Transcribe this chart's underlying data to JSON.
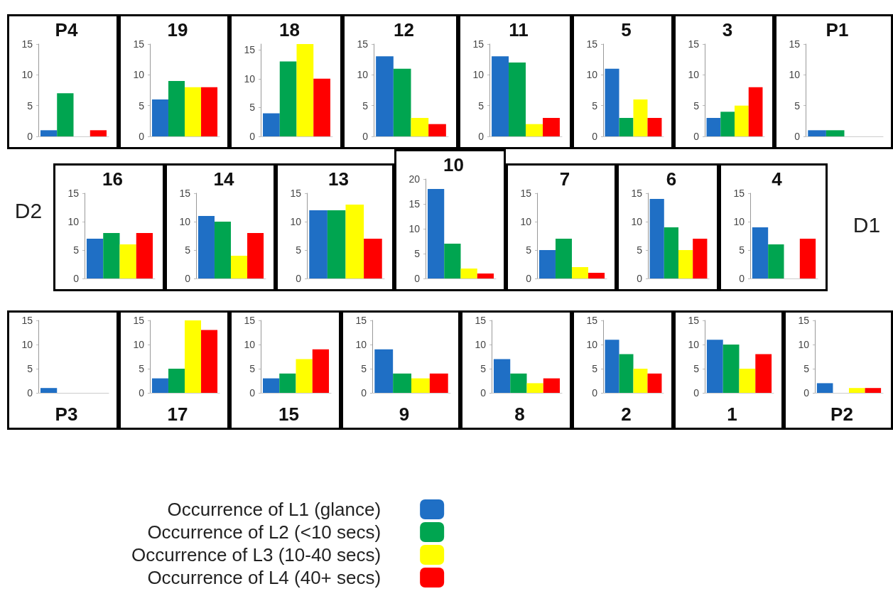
{
  "chart_data": [
    {
      "type": "bar",
      "title": "P4",
      "categories": [
        null
      ],
      "series": [
        {
          "color": "#1f6fc5",
          "values": [
            1
          ]
        },
        {
          "color": "#00a550",
          "values": [
            7
          ]
        },
        {
          "color": "#ffff00",
          "values": [
            0
          ]
        },
        {
          "color": "#ff0000",
          "values": [
            1
          ]
        }
      ],
      "ylim": [
        0,
        15
      ],
      "yticks": [
        0,
        5,
        10,
        15
      ]
    },
    {
      "type": "bar",
      "title": "19",
      "categories": [
        null
      ],
      "series": [
        {
          "color": "#1f6fc5",
          "values": [
            6
          ]
        },
        {
          "color": "#00a550",
          "values": [
            9
          ]
        },
        {
          "color": "#ffff00",
          "values": [
            8
          ]
        },
        {
          "color": "#ff0000",
          "values": [
            8
          ]
        }
      ],
      "ylim": [
        0,
        15
      ],
      "yticks": [
        0,
        5,
        10,
        15
      ]
    },
    {
      "type": "bar",
      "title": "18",
      "categories": [
        null
      ],
      "series": [
        {
          "color": "#1f6fc5",
          "values": [
            4
          ]
        },
        {
          "color": "#00a550",
          "values": [
            13
          ]
        },
        {
          "color": "#ffff00",
          "values": [
            16
          ]
        },
        {
          "color": "#ff0000",
          "values": [
            10
          ]
        }
      ],
      "ylim": [
        0,
        16
      ],
      "yticks": [
        0,
        5,
        10,
        15
      ]
    },
    {
      "type": "bar",
      "title": "12",
      "categories": [
        null
      ],
      "series": [
        {
          "color": "#1f6fc5",
          "values": [
            13
          ]
        },
        {
          "color": "#00a550",
          "values": [
            11
          ]
        },
        {
          "color": "#ffff00",
          "values": [
            3
          ]
        },
        {
          "color": "#ff0000",
          "values": [
            2
          ]
        }
      ],
      "ylim": [
        0,
        15
      ],
      "yticks": [
        0,
        5,
        10,
        15
      ]
    },
    {
      "type": "bar",
      "title": "11",
      "categories": [
        null
      ],
      "series": [
        {
          "color": "#1f6fc5",
          "values": [
            13
          ]
        },
        {
          "color": "#00a550",
          "values": [
            12
          ]
        },
        {
          "color": "#ffff00",
          "values": [
            2
          ]
        },
        {
          "color": "#ff0000",
          "values": [
            3
          ]
        }
      ],
      "ylim": [
        0,
        15
      ],
      "yticks": [
        0,
        5,
        10,
        15
      ]
    },
    {
      "type": "bar",
      "title": "5",
      "categories": [
        null
      ],
      "series": [
        {
          "color": "#1f6fc5",
          "values": [
            11
          ]
        },
        {
          "color": "#00a550",
          "values": [
            3
          ]
        },
        {
          "color": "#ffff00",
          "values": [
            6
          ]
        },
        {
          "color": "#ff0000",
          "values": [
            3
          ]
        }
      ],
      "ylim": [
        0,
        15
      ],
      "yticks": [
        0,
        5,
        10,
        15
      ]
    },
    {
      "type": "bar",
      "title": "3",
      "categories": [
        null
      ],
      "series": [
        {
          "color": "#1f6fc5",
          "values": [
            3
          ]
        },
        {
          "color": "#00a550",
          "values": [
            4
          ]
        },
        {
          "color": "#ffff00",
          "values": [
            5
          ]
        },
        {
          "color": "#ff0000",
          "values": [
            8
          ]
        }
      ],
      "ylim": [
        0,
        15
      ],
      "yticks": [
        0,
        5,
        10,
        15
      ]
    },
    {
      "type": "bar",
      "title": "P1",
      "categories": [
        null
      ],
      "series": [
        {
          "color": "#1f6fc5",
          "values": [
            1
          ]
        },
        {
          "color": "#00a550",
          "values": [
            1
          ]
        },
        {
          "color": "#ffff00",
          "values": [
            0
          ]
        },
        {
          "color": "#ff0000",
          "values": [
            0
          ]
        }
      ],
      "ylim": [
        0,
        15
      ],
      "yticks": [
        0,
        5,
        10,
        15
      ]
    },
    {
      "type": "bar",
      "title": "16",
      "categories": [
        null
      ],
      "series": [
        {
          "color": "#1f6fc5",
          "values": [
            7
          ]
        },
        {
          "color": "#00a550",
          "values": [
            8
          ]
        },
        {
          "color": "#ffff00",
          "values": [
            6
          ]
        },
        {
          "color": "#ff0000",
          "values": [
            8
          ]
        }
      ],
      "ylim": [
        0,
        15
      ],
      "yticks": [
        0,
        5,
        10,
        15
      ],
      "annotations": [
        "D2"
      ]
    },
    {
      "type": "bar",
      "title": "14",
      "categories": [
        null
      ],
      "series": [
        {
          "color": "#1f6fc5",
          "values": [
            11
          ]
        },
        {
          "color": "#00a550",
          "values": [
            10
          ]
        },
        {
          "color": "#ffff00",
          "values": [
            4
          ]
        },
        {
          "color": "#ff0000",
          "values": [
            8
          ]
        }
      ],
      "ylim": [
        0,
        15
      ],
      "yticks": [
        0,
        5,
        10,
        15
      ]
    },
    {
      "type": "bar",
      "title": "13",
      "categories": [
        null
      ],
      "series": [
        {
          "color": "#1f6fc5",
          "values": [
            12
          ]
        },
        {
          "color": "#00a550",
          "values": [
            12
          ]
        },
        {
          "color": "#ffff00",
          "values": [
            13
          ]
        },
        {
          "color": "#ff0000",
          "values": [
            7
          ]
        }
      ],
      "ylim": [
        0,
        15
      ],
      "yticks": [
        0,
        5,
        10,
        15
      ]
    },
    {
      "type": "bar",
      "title": "10",
      "categories": [
        null
      ],
      "series": [
        {
          "color": "#1f6fc5",
          "values": [
            18
          ]
        },
        {
          "color": "#00a550",
          "values": [
            7
          ]
        },
        {
          "color": "#ffff00",
          "values": [
            2
          ]
        },
        {
          "color": "#ff0000",
          "values": [
            1
          ]
        }
      ],
      "ylim": [
        0,
        20
      ],
      "yticks": [
        0,
        5,
        10,
        15,
        20
      ]
    },
    {
      "type": "bar",
      "title": "7",
      "categories": [
        null
      ],
      "series": [
        {
          "color": "#1f6fc5",
          "values": [
            5
          ]
        },
        {
          "color": "#00a550",
          "values": [
            7
          ]
        },
        {
          "color": "#ffff00",
          "values": [
            2
          ]
        },
        {
          "color": "#ff0000",
          "values": [
            1
          ]
        }
      ],
      "ylim": [
        0,
        15
      ],
      "yticks": [
        0,
        5,
        10,
        15
      ]
    },
    {
      "type": "bar",
      "title": "6",
      "categories": [
        null
      ],
      "series": [
        {
          "color": "#1f6fc5",
          "values": [
            14
          ]
        },
        {
          "color": "#00a550",
          "values": [
            9
          ]
        },
        {
          "color": "#ffff00",
          "values": [
            5
          ]
        },
        {
          "color": "#ff0000",
          "values": [
            7
          ]
        }
      ],
      "ylim": [
        0,
        15
      ],
      "yticks": [
        0,
        5,
        10,
        15
      ]
    },
    {
      "type": "bar",
      "title": "4",
      "categories": [
        null
      ],
      "series": [
        {
          "color": "#1f6fc5",
          "values": [
            9
          ]
        },
        {
          "color": "#00a550",
          "values": [
            6
          ]
        },
        {
          "color": "#ffff00",
          "values": [
            0
          ]
        },
        {
          "color": "#ff0000",
          "values": [
            7
          ]
        }
      ],
      "ylim": [
        0,
        15
      ],
      "yticks": [
        0,
        5,
        10,
        15
      ],
      "annotations": [
        "D1"
      ]
    },
    {
      "type": "bar",
      "title": "P3",
      "categories": [
        null
      ],
      "series": [
        {
          "color": "#1f6fc5",
          "values": [
            1
          ]
        },
        {
          "color": "#00a550",
          "values": [
            0
          ]
        },
        {
          "color": "#ffff00",
          "values": [
            0
          ]
        },
        {
          "color": "#ff0000",
          "values": [
            0
          ]
        }
      ],
      "ylim": [
        0,
        15
      ],
      "yticks": [
        0,
        5,
        10,
        15
      ]
    },
    {
      "type": "bar",
      "title": "17",
      "categories": [
        null
      ],
      "series": [
        {
          "color": "#1f6fc5",
          "values": [
            3
          ]
        },
        {
          "color": "#00a550",
          "values": [
            5
          ]
        },
        {
          "color": "#ffff00",
          "values": [
            15
          ]
        },
        {
          "color": "#ff0000",
          "values": [
            13
          ]
        }
      ],
      "ylim": [
        0,
        15
      ],
      "yticks": [
        0,
        5,
        10,
        15
      ]
    },
    {
      "type": "bar",
      "title": "15",
      "categories": [
        null
      ],
      "series": [
        {
          "color": "#1f6fc5",
          "values": [
            3
          ]
        },
        {
          "color": "#00a550",
          "values": [
            4
          ]
        },
        {
          "color": "#ffff00",
          "values": [
            7
          ]
        },
        {
          "color": "#ff0000",
          "values": [
            9
          ]
        }
      ],
      "ylim": [
        0,
        15
      ],
      "yticks": [
        0,
        5,
        10,
        15
      ]
    },
    {
      "type": "bar",
      "title": "9",
      "categories": [
        null
      ],
      "series": [
        {
          "color": "#1f6fc5",
          "values": [
            9
          ]
        },
        {
          "color": "#00a550",
          "values": [
            4
          ]
        },
        {
          "color": "#ffff00",
          "values": [
            3
          ]
        },
        {
          "color": "#ff0000",
          "values": [
            4
          ]
        }
      ],
      "ylim": [
        0,
        15
      ],
      "yticks": [
        0,
        5,
        10,
        15
      ]
    },
    {
      "type": "bar",
      "title": "8",
      "categories": [
        null
      ],
      "series": [
        {
          "color": "#1f6fc5",
          "values": [
            7
          ]
        },
        {
          "color": "#00a550",
          "values": [
            4
          ]
        },
        {
          "color": "#ffff00",
          "values": [
            2
          ]
        },
        {
          "color": "#ff0000",
          "values": [
            3
          ]
        }
      ],
      "ylim": [
        0,
        15
      ],
      "yticks": [
        0,
        5,
        10,
        15
      ]
    },
    {
      "type": "bar",
      "title": "2",
      "categories": [
        null
      ],
      "series": [
        {
          "color": "#1f6fc5",
          "values": [
            11
          ]
        },
        {
          "color": "#00a550",
          "values": [
            8
          ]
        },
        {
          "color": "#ffff00",
          "values": [
            5
          ]
        },
        {
          "color": "#ff0000",
          "values": [
            4
          ]
        }
      ],
      "ylim": [
        0,
        15
      ],
      "yticks": [
        0,
        5,
        10,
        15
      ]
    },
    {
      "type": "bar",
      "title": "1",
      "categories": [
        null
      ],
      "series": [
        {
          "color": "#1f6fc5",
          "values": [
            11
          ]
        },
        {
          "color": "#00a550",
          "values": [
            10
          ]
        },
        {
          "color": "#ffff00",
          "values": [
            5
          ]
        },
        {
          "color": "#ff0000",
          "values": [
            8
          ]
        }
      ],
      "ylim": [
        0,
        15
      ],
      "yticks": [
        0,
        5,
        10,
        15
      ]
    },
    {
      "type": "bar",
      "title": "P2",
      "categories": [
        null
      ],
      "legend": "bottom",
      "series": [
        {
          "name": "Occurrence of L1 (glance)",
          "color": "#1f6fc5",
          "values": [
            2
          ]
        },
        {
          "name": "Occurrence of L2 (<10 secs)",
          "color": "#00a550",
          "values": [
            0
          ]
        },
        {
          "name": "Occurrence of L3 (10-40 secs)",
          "color": "#ffff00",
          "values": [
            1
          ]
        },
        {
          "name": "Occurrence of L4 (40+ secs)",
          "color": "#ff0000",
          "values": [
            1
          ]
        }
      ],
      "ylim": [
        0,
        15
      ],
      "yticks": [
        0,
        5,
        10,
        15
      ]
    }
  ]
}
